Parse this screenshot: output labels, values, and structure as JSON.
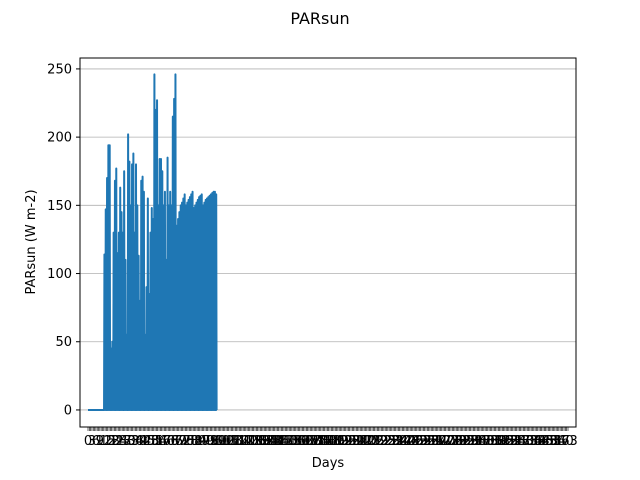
{
  "chart_data": {
    "type": "line",
    "title": "PARsun",
    "xlabel": "Days",
    "ylabel": "PARsun (W m-2)",
    "ylim": [
      -12.5,
      258
    ],
    "y_ticks": [
      0,
      50,
      100,
      150,
      200,
      250
    ],
    "grid": {
      "y": true,
      "x": false
    },
    "legend": "none",
    "series": [
      {
        "color": "#1f77b4",
        "x_range": [
          0,
          365
        ],
        "x_day_range": [
          0,
          98
        ],
        "night_value": 0,
        "zero_until_day": 12,
        "daily_peaks": [
          0,
          0,
          0,
          0,
          0,
          0,
          0,
          0,
          0,
          0,
          0,
          0,
          114,
          147,
          170,
          194,
          194,
          45,
          50,
          130,
          168,
          177,
          115,
          130,
          163,
          145,
          130,
          175,
          110,
          55,
          202,
          182,
          150,
          180,
          188,
          130,
          180,
          150,
          113,
          80,
          168,
          171,
          160,
          55,
          90,
          155,
          85,
          130,
          148,
          140,
          246,
          220,
          227,
          150,
          184,
          184,
          175,
          150,
          160,
          110,
          185,
          150,
          160,
          150,
          215,
          228,
          246,
          135,
          140,
          145,
          150,
          152,
          155,
          158,
          150,
          152,
          154,
          156,
          158,
          160,
          148,
          150,
          152,
          154,
          156,
          157,
          158,
          150,
          152,
          154,
          155,
          156,
          157,
          158,
          159,
          160,
          160,
          158
        ]
      }
    ]
  }
}
